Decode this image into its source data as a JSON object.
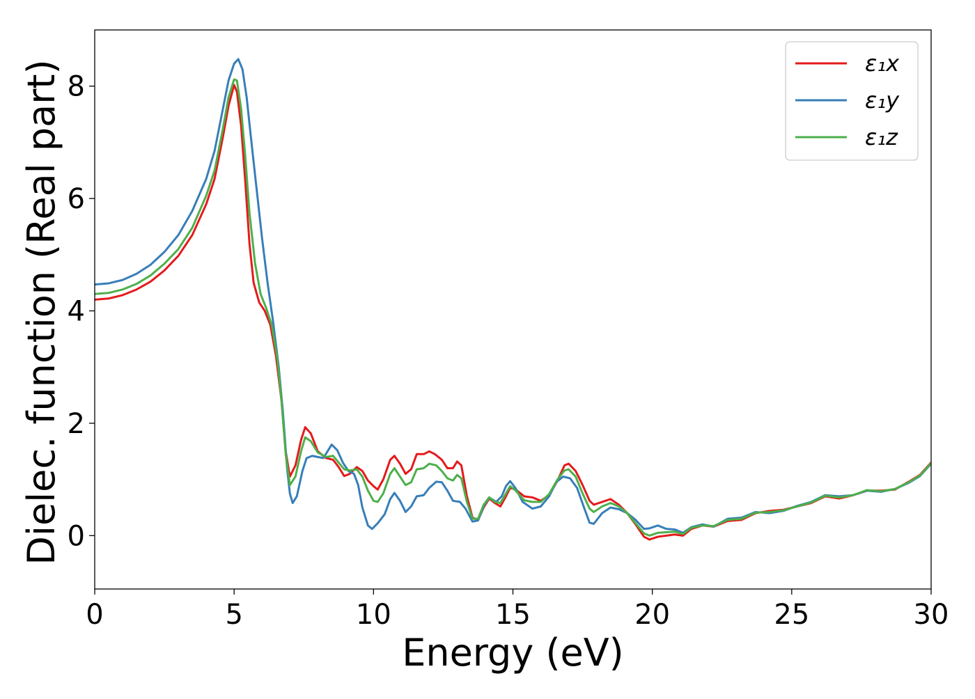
{
  "chart_data": {
    "type": "line",
    "title": "",
    "xlabel": "Energy (eV)",
    "ylabel": "Dielec. function (Real part)",
    "xlim": [
      0,
      30
    ],
    "ylim": [
      -0.95,
      9.0
    ],
    "xticks": [
      0,
      5,
      10,
      15,
      20,
      25,
      30
    ],
    "yticks": [
      0,
      2,
      4,
      6,
      8
    ],
    "grid": false,
    "legend_position": "top-right",
    "series": [
      {
        "name": "ε₁x",
        "color": "#e41a1c",
        "points": [
          [
            0,
            4.2
          ],
          [
            0.5,
            4.22
          ],
          [
            1.0,
            4.28
          ],
          [
            1.5,
            4.38
          ],
          [
            2.0,
            4.52
          ],
          [
            2.5,
            4.72
          ],
          [
            3.0,
            4.98
          ],
          [
            3.5,
            5.35
          ],
          [
            4.0,
            5.9
          ],
          [
            4.3,
            6.35
          ],
          [
            4.6,
            7.1
          ],
          [
            4.8,
            7.65
          ],
          [
            5.0,
            8.02
          ],
          [
            5.1,
            7.9
          ],
          [
            5.25,
            7.3
          ],
          [
            5.4,
            6.3
          ],
          [
            5.55,
            5.2
          ],
          [
            5.7,
            4.5
          ],
          [
            5.9,
            4.15
          ],
          [
            6.1,
            4.0
          ],
          [
            6.3,
            3.75
          ],
          [
            6.5,
            3.2
          ],
          [
            6.7,
            2.4
          ],
          [
            6.85,
            1.5
          ],
          [
            7.0,
            1.05
          ],
          [
            7.2,
            1.25
          ],
          [
            7.4,
            1.7
          ],
          [
            7.55,
            1.93
          ],
          [
            7.75,
            1.82
          ],
          [
            8.0,
            1.5
          ],
          [
            8.3,
            1.38
          ],
          [
            8.55,
            1.35
          ],
          [
            8.75,
            1.22
          ],
          [
            8.95,
            1.06
          ],
          [
            9.15,
            1.1
          ],
          [
            9.4,
            1.22
          ],
          [
            9.6,
            1.15
          ],
          [
            9.8,
            0.98
          ],
          [
            10.0,
            0.88
          ],
          [
            10.15,
            0.82
          ],
          [
            10.35,
            1.0
          ],
          [
            10.6,
            1.35
          ],
          [
            10.75,
            1.42
          ],
          [
            10.95,
            1.28
          ],
          [
            11.15,
            1.1
          ],
          [
            11.35,
            1.18
          ],
          [
            11.55,
            1.45
          ],
          [
            11.8,
            1.45
          ],
          [
            12.0,
            1.5
          ],
          [
            12.2,
            1.45
          ],
          [
            12.45,
            1.35
          ],
          [
            12.65,
            1.2
          ],
          [
            12.85,
            1.2
          ],
          [
            13.0,
            1.32
          ],
          [
            13.15,
            1.25
          ],
          [
            13.35,
            0.7
          ],
          [
            13.55,
            0.32
          ],
          [
            13.75,
            0.28
          ],
          [
            13.95,
            0.5
          ],
          [
            14.15,
            0.66
          ],
          [
            14.35,
            0.58
          ],
          [
            14.55,
            0.52
          ],
          [
            14.75,
            0.7
          ],
          [
            14.9,
            0.85
          ],
          [
            15.1,
            0.82
          ],
          [
            15.4,
            0.7
          ],
          [
            15.7,
            0.68
          ],
          [
            16.0,
            0.62
          ],
          [
            16.3,
            0.72
          ],
          [
            16.6,
            0.98
          ],
          [
            16.85,
            1.25
          ],
          [
            17.0,
            1.28
          ],
          [
            17.25,
            1.15
          ],
          [
            17.5,
            0.9
          ],
          [
            17.75,
            0.62
          ],
          [
            17.9,
            0.55
          ],
          [
            18.2,
            0.6
          ],
          [
            18.5,
            0.65
          ],
          [
            18.8,
            0.55
          ],
          [
            19.1,
            0.4
          ],
          [
            19.4,
            0.2
          ],
          [
            19.7,
            -0.02
          ],
          [
            19.9,
            -0.07
          ],
          [
            20.2,
            -0.02
          ],
          [
            20.5,
            0.0
          ],
          [
            20.8,
            0.02
          ],
          [
            21.1,
            0.0
          ],
          [
            21.4,
            0.12
          ],
          [
            21.8,
            0.18
          ],
          [
            22.2,
            0.16
          ],
          [
            22.7,
            0.26
          ],
          [
            23.2,
            0.28
          ],
          [
            23.7,
            0.4
          ],
          [
            24.2,
            0.44
          ],
          [
            24.7,
            0.46
          ],
          [
            25.2,
            0.52
          ],
          [
            25.7,
            0.58
          ],
          [
            26.2,
            0.7
          ],
          [
            26.7,
            0.66
          ],
          [
            27.2,
            0.72
          ],
          [
            27.7,
            0.8
          ],
          [
            28.2,
            0.8
          ],
          [
            28.7,
            0.82
          ],
          [
            29.2,
            0.96
          ],
          [
            29.6,
            1.08
          ],
          [
            30.0,
            1.3
          ]
        ]
      },
      {
        "name": "ε₁y",
        "color": "#377eb8",
        "points": [
          [
            0,
            4.47
          ],
          [
            0.5,
            4.49
          ],
          [
            1.0,
            4.55
          ],
          [
            1.5,
            4.66
          ],
          [
            2.0,
            4.82
          ],
          [
            2.5,
            5.05
          ],
          [
            3.0,
            5.35
          ],
          [
            3.5,
            5.78
          ],
          [
            4.0,
            6.35
          ],
          [
            4.3,
            6.85
          ],
          [
            4.6,
            7.6
          ],
          [
            4.8,
            8.1
          ],
          [
            5.0,
            8.4
          ],
          [
            5.15,
            8.48
          ],
          [
            5.3,
            8.3
          ],
          [
            5.45,
            7.8
          ],
          [
            5.6,
            7.1
          ],
          [
            5.8,
            6.2
          ],
          [
            6.0,
            5.3
          ],
          [
            6.2,
            4.5
          ],
          [
            6.4,
            3.8
          ],
          [
            6.6,
            3.0
          ],
          [
            6.75,
            2.2
          ],
          [
            6.9,
            1.2
          ],
          [
            7.0,
            0.75
          ],
          [
            7.1,
            0.58
          ],
          [
            7.25,
            0.7
          ],
          [
            7.45,
            1.15
          ],
          [
            7.6,
            1.38
          ],
          [
            7.8,
            1.42
          ],
          [
            8.0,
            1.4
          ],
          [
            8.2,
            1.38
          ],
          [
            8.35,
            1.5
          ],
          [
            8.5,
            1.62
          ],
          [
            8.7,
            1.52
          ],
          [
            8.9,
            1.3
          ],
          [
            9.1,
            1.15
          ],
          [
            9.3,
            1.1
          ],
          [
            9.45,
            0.9
          ],
          [
            9.6,
            0.5
          ],
          [
            9.8,
            0.18
          ],
          [
            9.95,
            0.12
          ],
          [
            10.15,
            0.22
          ],
          [
            10.4,
            0.38
          ],
          [
            10.6,
            0.65
          ],
          [
            10.75,
            0.76
          ],
          [
            10.95,
            0.62
          ],
          [
            11.15,
            0.42
          ],
          [
            11.35,
            0.52
          ],
          [
            11.55,
            0.7
          ],
          [
            11.8,
            0.72
          ],
          [
            12.0,
            0.85
          ],
          [
            12.25,
            0.96
          ],
          [
            12.45,
            0.95
          ],
          [
            12.65,
            0.8
          ],
          [
            12.85,
            0.62
          ],
          [
            13.1,
            0.6
          ],
          [
            13.3,
            0.48
          ],
          [
            13.55,
            0.25
          ],
          [
            13.75,
            0.27
          ],
          [
            13.95,
            0.52
          ],
          [
            14.15,
            0.68
          ],
          [
            14.4,
            0.6
          ],
          [
            14.6,
            0.7
          ],
          [
            14.75,
            0.88
          ],
          [
            14.9,
            0.97
          ],
          [
            15.1,
            0.84
          ],
          [
            15.35,
            0.6
          ],
          [
            15.7,
            0.48
          ],
          [
            16.0,
            0.52
          ],
          [
            16.3,
            0.7
          ],
          [
            16.55,
            0.95
          ],
          [
            16.8,
            1.05
          ],
          [
            17.05,
            1.02
          ],
          [
            17.3,
            0.85
          ],
          [
            17.55,
            0.5
          ],
          [
            17.75,
            0.23
          ],
          [
            17.9,
            0.21
          ],
          [
            18.2,
            0.4
          ],
          [
            18.5,
            0.5
          ],
          [
            18.8,
            0.47
          ],
          [
            19.1,
            0.4
          ],
          [
            19.4,
            0.28
          ],
          [
            19.7,
            0.12
          ],
          [
            19.9,
            0.13
          ],
          [
            20.2,
            0.18
          ],
          [
            20.5,
            0.12
          ],
          [
            20.8,
            0.11
          ],
          [
            21.1,
            0.05
          ],
          [
            21.4,
            0.15
          ],
          [
            21.8,
            0.2
          ],
          [
            22.2,
            0.16
          ],
          [
            22.7,
            0.3
          ],
          [
            23.2,
            0.32
          ],
          [
            23.7,
            0.42
          ],
          [
            24.2,
            0.4
          ],
          [
            24.7,
            0.44
          ],
          [
            25.2,
            0.53
          ],
          [
            25.7,
            0.6
          ],
          [
            26.2,
            0.72
          ],
          [
            26.7,
            0.7
          ],
          [
            27.2,
            0.72
          ],
          [
            27.7,
            0.8
          ],
          [
            28.2,
            0.78
          ],
          [
            28.7,
            0.83
          ],
          [
            29.2,
            0.94
          ],
          [
            29.6,
            1.06
          ],
          [
            30.0,
            1.28
          ]
        ]
      },
      {
        "name": "ε₁z",
        "color": "#4daf4a",
        "points": [
          [
            0,
            4.3
          ],
          [
            0.5,
            4.32
          ],
          [
            1.0,
            4.38
          ],
          [
            1.5,
            4.48
          ],
          [
            2.0,
            4.63
          ],
          [
            2.5,
            4.84
          ],
          [
            3.0,
            5.1
          ],
          [
            3.5,
            5.48
          ],
          [
            4.0,
            6.05
          ],
          [
            4.3,
            6.5
          ],
          [
            4.6,
            7.25
          ],
          [
            4.8,
            7.8
          ],
          [
            5.0,
            8.12
          ],
          [
            5.1,
            8.1
          ],
          [
            5.25,
            7.6
          ],
          [
            5.4,
            6.75
          ],
          [
            5.55,
            5.75
          ],
          [
            5.75,
            4.85
          ],
          [
            5.95,
            4.3
          ],
          [
            6.15,
            4.05
          ],
          [
            6.35,
            3.75
          ],
          [
            6.55,
            3.15
          ],
          [
            6.7,
            2.4
          ],
          [
            6.85,
            1.45
          ],
          [
            7.0,
            0.9
          ],
          [
            7.2,
            1.05
          ],
          [
            7.4,
            1.5
          ],
          [
            7.55,
            1.75
          ],
          [
            7.75,
            1.68
          ],
          [
            8.0,
            1.48
          ],
          [
            8.3,
            1.4
          ],
          [
            8.55,
            1.42
          ],
          [
            8.75,
            1.3
          ],
          [
            8.95,
            1.18
          ],
          [
            9.15,
            1.16
          ],
          [
            9.4,
            1.18
          ],
          [
            9.6,
            1.05
          ],
          [
            9.8,
            0.8
          ],
          [
            10.0,
            0.62
          ],
          [
            10.15,
            0.6
          ],
          [
            10.35,
            0.75
          ],
          [
            10.6,
            1.1
          ],
          [
            10.75,
            1.2
          ],
          [
            10.95,
            1.05
          ],
          [
            11.15,
            0.9
          ],
          [
            11.35,
            0.95
          ],
          [
            11.55,
            1.18
          ],
          [
            11.8,
            1.2
          ],
          [
            12.0,
            1.28
          ],
          [
            12.25,
            1.25
          ],
          [
            12.45,
            1.15
          ],
          [
            12.65,
            1.02
          ],
          [
            12.85,
            0.98
          ],
          [
            13.0,
            1.08
          ],
          [
            13.15,
            1.02
          ],
          [
            13.35,
            0.6
          ],
          [
            13.55,
            0.3
          ],
          [
            13.75,
            0.3
          ],
          [
            13.95,
            0.55
          ],
          [
            14.15,
            0.68
          ],
          [
            14.35,
            0.6
          ],
          [
            14.55,
            0.58
          ],
          [
            14.75,
            0.75
          ],
          [
            14.9,
            0.88
          ],
          [
            15.1,
            0.8
          ],
          [
            15.4,
            0.63
          ],
          [
            15.7,
            0.6
          ],
          [
            16.0,
            0.6
          ],
          [
            16.3,
            0.74
          ],
          [
            16.6,
            1.0
          ],
          [
            16.85,
            1.16
          ],
          [
            17.0,
            1.18
          ],
          [
            17.25,
            1.05
          ],
          [
            17.5,
            0.75
          ],
          [
            17.75,
            0.48
          ],
          [
            17.9,
            0.42
          ],
          [
            18.2,
            0.52
          ],
          [
            18.5,
            0.58
          ],
          [
            18.8,
            0.52
          ],
          [
            19.1,
            0.4
          ],
          [
            19.4,
            0.22
          ],
          [
            19.7,
            0.04
          ],
          [
            19.9,
            0.0
          ],
          [
            20.2,
            0.05
          ],
          [
            20.5,
            0.06
          ],
          [
            20.8,
            0.07
          ],
          [
            21.1,
            0.03
          ],
          [
            21.4,
            0.14
          ],
          [
            21.8,
            0.18
          ],
          [
            22.2,
            0.17
          ],
          [
            22.7,
            0.28
          ],
          [
            23.2,
            0.3
          ],
          [
            23.7,
            0.41
          ],
          [
            24.2,
            0.42
          ],
          [
            24.7,
            0.45
          ],
          [
            25.2,
            0.52
          ],
          [
            25.7,
            0.59
          ],
          [
            26.2,
            0.71
          ],
          [
            26.7,
            0.68
          ],
          [
            27.2,
            0.72
          ],
          [
            27.7,
            0.81
          ],
          [
            28.2,
            0.79
          ],
          [
            28.7,
            0.83
          ],
          [
            29.2,
            0.95
          ],
          [
            29.6,
            1.07
          ],
          [
            30.0,
            1.29
          ]
        ]
      }
    ]
  }
}
